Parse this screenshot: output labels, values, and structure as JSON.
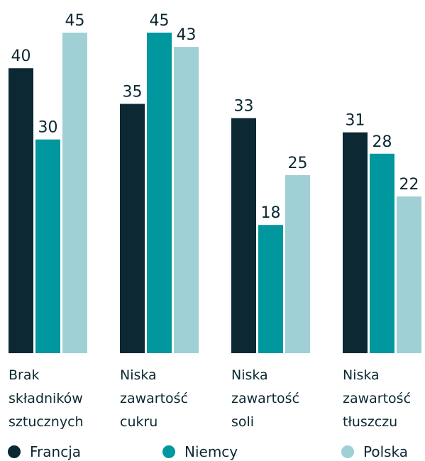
{
  "chart_data": {
    "type": "bar",
    "categories": [
      [
        "Brak",
        "składników",
        "sztucznych"
      ],
      [
        "Niska",
        "zawartość",
        "cukru"
      ],
      [
        "Niska",
        "zawartość",
        "soli"
      ],
      [
        "Niska",
        "zawartość",
        "tłuszczu"
      ]
    ],
    "series": [
      {
        "name": "Francja",
        "color": "#0b2833",
        "values": [
          40,
          35,
          33,
          31
        ]
      },
      {
        "name": "Niemcy",
        "color": "#00979f",
        "values": [
          30,
          45,
          18,
          28
        ]
      },
      {
        "name": "Polska",
        "color": "#9fd0d5",
        "values": [
          45,
          43,
          25,
          22
        ]
      }
    ]
  }
}
